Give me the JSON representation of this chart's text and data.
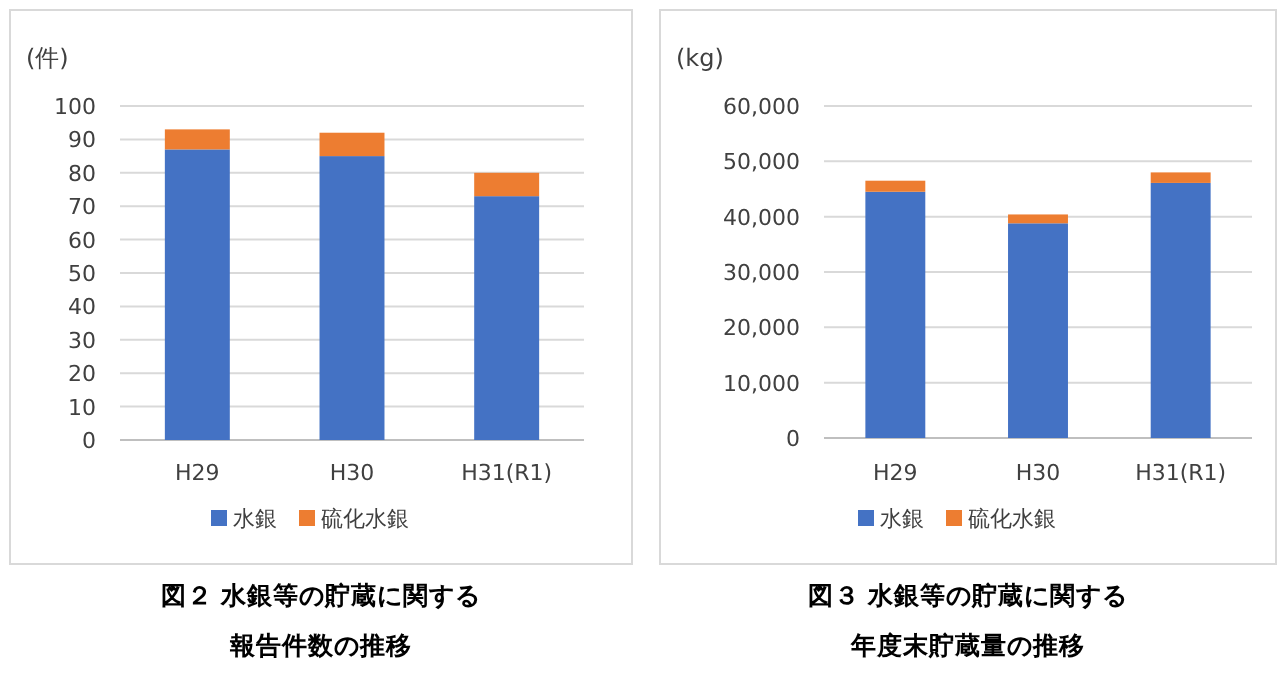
{
  "chart_data": [
    {
      "type": "bar",
      "stacked": true,
      "title": "図２ 水銀等の貯蔵に関する",
      "subtitle": "報告件数の推移",
      "ylabel": "(件)",
      "categories": [
        "H29",
        "H30",
        "H31(R1)"
      ],
      "series": [
        {
          "name": "水銀",
          "color": "#4472c4",
          "values": [
            87,
            85,
            73
          ]
        },
        {
          "name": "硫化水銀",
          "color": "#ed7d31",
          "values": [
            6,
            7,
            7
          ]
        }
      ],
      "ylim": [
        0,
        100
      ],
      "yticks": [
        0,
        10,
        20,
        30,
        40,
        50,
        60,
        70,
        80,
        90,
        100
      ],
      "grid": "y",
      "legend": "bottom"
    },
    {
      "type": "bar",
      "stacked": true,
      "title": "図３ 水銀等の貯蔵に関する",
      "subtitle": "年度末貯蔵量の推移",
      "ylabel": "(kg)",
      "categories": [
        "H29",
        "H30",
        "H31(R1)"
      ],
      "series": [
        {
          "name": "水銀",
          "color": "#4472c4",
          "values": [
            44500,
            38800,
            46100
          ]
        },
        {
          "name": "硫化水銀",
          "color": "#ed7d31",
          "values": [
            2000,
            1600,
            1900
          ]
        }
      ],
      "ylim": [
        0,
        60000
      ],
      "yticks": [
        {
          "value": 0,
          "label": "0"
        },
        {
          "value": 10000,
          "label": "10,000"
        },
        {
          "value": 20000,
          "label": "20,000"
        },
        {
          "value": 30000,
          "label": "30,000"
        },
        {
          "value": 40000,
          "label": "40,000"
        },
        {
          "value": 50000,
          "label": "50,000"
        },
        {
          "value": 60000,
          "label": "60,000"
        }
      ],
      "grid": "y",
      "legend": "bottom"
    }
  ]
}
